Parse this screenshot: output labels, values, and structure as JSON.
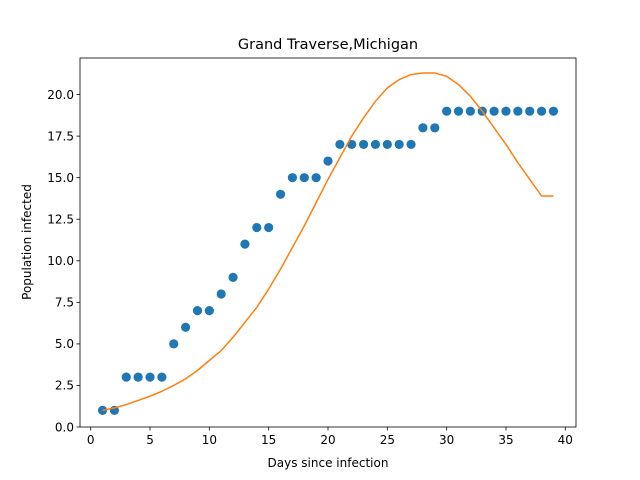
{
  "chart_data": {
    "type": "scatter",
    "title": "Grand Traverse,Michigan",
    "xlabel": "Days since infection",
    "ylabel": "Population infected",
    "xlim": [
      -0.9,
      40.9
    ],
    "ylim": [
      0,
      22.2
    ],
    "xticks": [
      0,
      5,
      10,
      15,
      20,
      25,
      30,
      35,
      40
    ],
    "xtick_labels": [
      "0",
      "5",
      "10",
      "15",
      "20",
      "25",
      "30",
      "35",
      "40"
    ],
    "yticks": [
      0,
      2.5,
      5,
      7.5,
      10,
      12.5,
      15,
      17.5,
      20
    ],
    "ytick_labels": [
      "0.0",
      "2.5",
      "5.0",
      "7.5",
      "10.0",
      "12.5",
      "15.0",
      "17.5",
      "20.0"
    ],
    "grid": false,
    "series": [
      {
        "type": "scatter",
        "color": "#1f77b4",
        "x": [
          1,
          2,
          3,
          4,
          5,
          6,
          7,
          8,
          9,
          10,
          11,
          12,
          13,
          14,
          15,
          16,
          17,
          18,
          19,
          20,
          21,
          22,
          23,
          24,
          25,
          26,
          27,
          28,
          29,
          30,
          31,
          32,
          33,
          34,
          35,
          36,
          37,
          38,
          39
        ],
        "y": [
          1,
          1,
          3,
          3,
          3,
          3,
          5,
          6,
          7,
          7,
          8,
          9,
          11,
          12,
          12,
          14,
          15,
          15,
          15,
          16,
          17,
          17,
          17,
          17,
          17,
          17,
          17,
          18,
          18,
          19,
          19,
          19,
          19,
          19,
          19,
          19,
          19,
          19,
          19
        ]
      },
      {
        "type": "line",
        "color": "#ff7f0e",
        "x": [
          1,
          2,
          3,
          4,
          5,
          6,
          7,
          8,
          9,
          10,
          11,
          12,
          13,
          14,
          15,
          16,
          17,
          18,
          19,
          20,
          21,
          22,
          23,
          24,
          25,
          26,
          27,
          28,
          29,
          30,
          31,
          32,
          33,
          34,
          35,
          36,
          37,
          38,
          39
        ],
        "y": [
          1.0,
          1.15,
          1.35,
          1.6,
          1.85,
          2.15,
          2.5,
          2.9,
          3.4,
          4.0,
          4.6,
          5.4,
          6.3,
          7.2,
          8.3,
          9.5,
          10.8,
          12.1,
          13.5,
          14.9,
          16.2,
          17.5,
          18.6,
          19.6,
          20.4,
          20.9,
          21.2,
          21.3,
          21.3,
          21.1,
          20.6,
          19.9,
          19.0,
          18.0,
          17.0,
          15.9,
          14.9,
          13.9,
          13.9
        ]
      }
    ]
  }
}
